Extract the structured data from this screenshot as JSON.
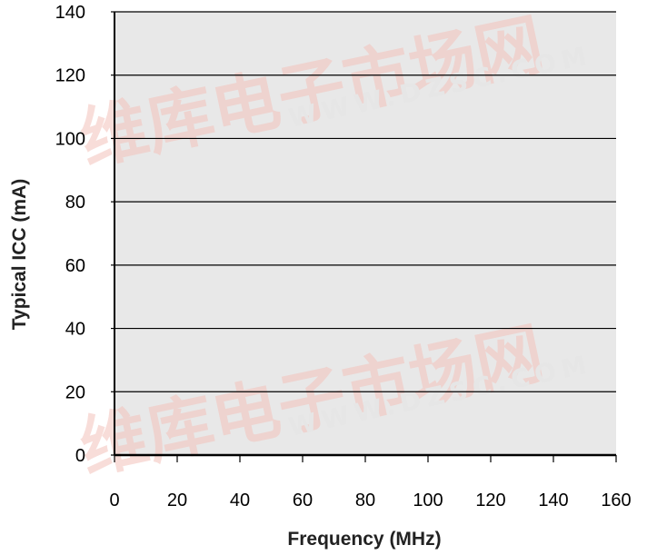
{
  "chart_data": {
    "type": "line",
    "xlabel": "Frequency (MHz)",
    "ylabel": "Typical ICC (mA)",
    "xlim": [
      0,
      160
    ],
    "ylim": [
      0,
      140
    ],
    "x_ticks": [
      0,
      20,
      40,
      60,
      80,
      100,
      120,
      140,
      160
    ],
    "y_ticks": [
      0,
      20,
      40,
      60,
      80,
      100,
      120,
      140
    ],
    "grid": true,
    "series": []
  },
  "watermark": {
    "text_cn": "维库电子市场网",
    "text_url": "WWW.DZSC.COM"
  },
  "colors": {
    "plot_background": "#e8e8e8",
    "gridline": "#000000",
    "axis": "#000000",
    "watermark_red": "#f3c2bb"
  }
}
